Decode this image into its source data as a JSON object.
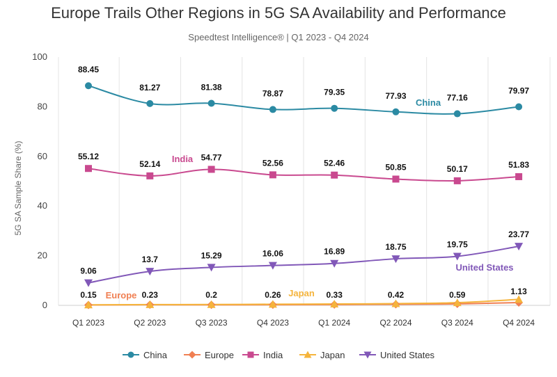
{
  "chart_data": {
    "type": "line",
    "title": "Europe Trails Other Regions in 5G SA Availability and Performance",
    "subtitle": "Speedtest Intelligence® | Q1 2023 - Q4 2024",
    "xlabel": "",
    "ylabel": "5G SA Sample Share (%)",
    "ylim": [
      0,
      100
    ],
    "yticks": [
      0,
      20,
      40,
      60,
      80,
      100
    ],
    "grid": "vertical",
    "legend": "bottom",
    "categories": [
      "Q1 2023",
      "Q2 2023",
      "Q3 2023",
      "Q4 2023",
      "Q1 2024",
      "Q2 2024",
      "Q3 2024",
      "Q4 2024"
    ],
    "series": [
      {
        "name": "China",
        "color": "#2b8aa3",
        "marker": "circle",
        "values": [
          88.45,
          81.27,
          81.38,
          78.87,
          79.35,
          77.93,
          77.16,
          79.97
        ],
        "labels": [
          "88.45",
          "81.27",
          "81.38",
          "78.87",
          "79.35",
          "77.93",
          "77.16",
          "79.97"
        ]
      },
      {
        "name": "Europe",
        "color": "#f07f52",
        "marker": "diamond",
        "values": [
          0.15,
          0.23,
          0.2,
          0.26,
          0.33,
          0.42,
          0.59,
          1.13
        ],
        "labels": [
          "0.15",
          "0.23",
          "0.2",
          "0.26",
          "0.33",
          "0.42",
          "0.59",
          "1.13"
        ]
      },
      {
        "name": "India",
        "color": "#c9498f",
        "marker": "square",
        "values": [
          55.12,
          52.14,
          54.77,
          52.56,
          52.46,
          50.85,
          50.17,
          51.83
        ],
        "labels": [
          "55.12",
          "52.14",
          "54.77",
          "52.56",
          "52.46",
          "50.85",
          "50.17",
          "51.83"
        ]
      },
      {
        "name": "Japan",
        "color": "#f5b43c",
        "marker": "triangle-up",
        "values": [
          0.2,
          0.3,
          0.35,
          0.45,
          0.55,
          0.7,
          1.1,
          2.4
        ],
        "labels": []
      },
      {
        "name": "United States",
        "color": "#8158b8",
        "marker": "triangle-down",
        "values": [
          9.06,
          13.7,
          15.29,
          16.06,
          16.89,
          18.75,
          19.75,
          23.77
        ],
        "labels": [
          "9.06",
          "13.7",
          "15.29",
          "16.06",
          "16.89",
          "18.75",
          "19.75",
          "23.77"
        ]
      }
    ],
    "annotations": [
      {
        "text": "China",
        "series": "China"
      },
      {
        "text": "India",
        "series": "India"
      },
      {
        "text": "Europe",
        "series": "Europe"
      },
      {
        "text": "Japan",
        "series": "Japan"
      },
      {
        "text": "United States",
        "series": "United States"
      }
    ]
  }
}
